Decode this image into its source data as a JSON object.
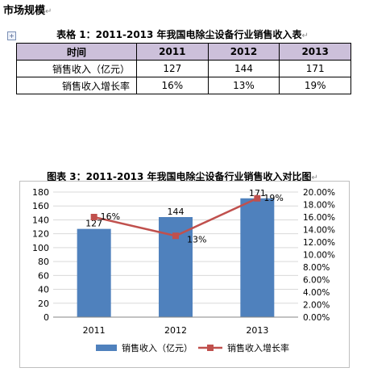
{
  "section": {
    "title": "市场规模",
    "mark": "↵"
  },
  "table": {
    "caption": "表格  1：2011-2013 年我国电除尘设备行业销售收入表",
    "caption_mark": "↵",
    "header": [
      "时间",
      "2011",
      "2012",
      "2013"
    ],
    "rows": [
      {
        "label": "销售收入（亿元）",
        "values": [
          "127",
          "144",
          "171"
        ]
      },
      {
        "label": "销售收入增长率",
        "values": [
          "16%",
          "13%",
          "19%"
        ]
      }
    ]
  },
  "chart_caption": "图表  3：2011-2013 年我国电除尘设备行业销售收入对比图",
  "chart_caption_mark": "↵",
  "chart_data": {
    "type": "bar",
    "categories": [
      "2011",
      "2012",
      "2013"
    ],
    "series": [
      {
        "name": "销售收入（亿元）",
        "type": "bar",
        "axis": "left",
        "color": "#4f81bd",
        "values": [
          127,
          144,
          171
        ],
        "labels": [
          "127",
          "144",
          "171"
        ]
      },
      {
        "name": "销售收入增长率",
        "type": "line",
        "axis": "right",
        "color": "#c0504d",
        "values": [
          16,
          13,
          19
        ],
        "labels": [
          "16%",
          "13%",
          "19%"
        ]
      }
    ],
    "y_left": {
      "min": 0,
      "max": 180,
      "ticks": [
        "0",
        "20",
        "40",
        "60",
        "80",
        "100",
        "120",
        "140",
        "160",
        "180"
      ]
    },
    "y_right": {
      "min": 0,
      "max": 20,
      "ticks": [
        "0.00%",
        "2.00%",
        "4.00%",
        "6.00%",
        "8.00%",
        "10.00%",
        "12.00%",
        "14.00%",
        "16.00%",
        "18.00%",
        "20.00%"
      ]
    },
    "grid": true,
    "legend_position": "bottom"
  }
}
